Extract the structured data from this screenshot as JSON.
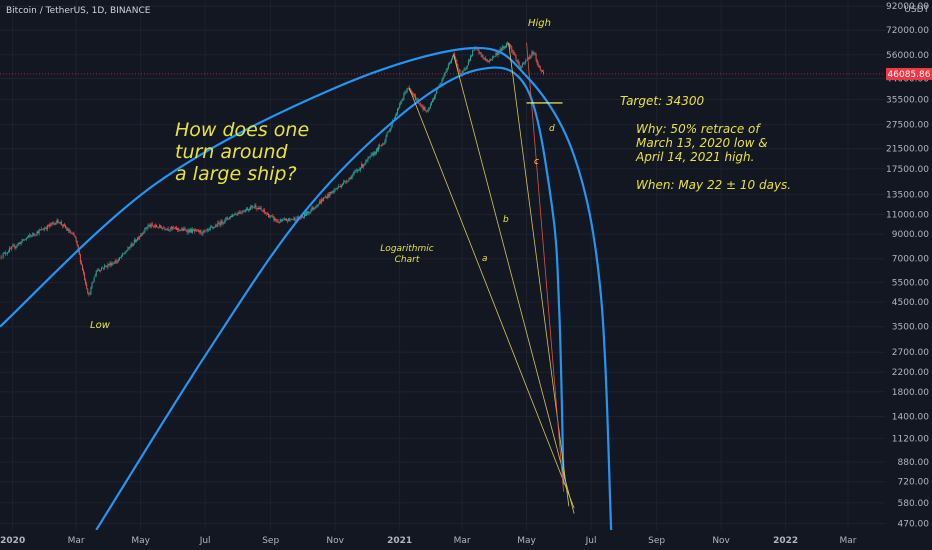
{
  "header": {
    "symbol": "Bitcoin / TetherUS, 1D, BINANCE",
    "currency": "USDT"
  },
  "price_badge": {
    "text": "46085.86",
    "value": 46085.86,
    "color": "#f23645"
  },
  "colors": {
    "background": "#131722",
    "up": "#26a69a",
    "down": "#ef5350",
    "curve": "#2196f3",
    "annotation": "#e8e23a",
    "fan_yellow": "#d6c55a",
    "fan_red": "#e0553a",
    "grid": "#1e2230",
    "axis_text": "#b2b5be"
  },
  "chart_data": {
    "type": "candlestick",
    "yscale": "log",
    "ylim": [
      440,
      98000
    ],
    "xlim": [
      "2019-12-20",
      "2022-04-05"
    ],
    "y_ticks": [
      "92000.00",
      "72000.00",
      "56000.00",
      "44000.00",
      "35500.00",
      "27500.00",
      "21500.00",
      "17500.00",
      "13500.00",
      "11000.00",
      "9000.00",
      "7000.00",
      "5500.00",
      "4500.00",
      "3500.00",
      "2700.00",
      "2200.00",
      "1800.00",
      "1400.00",
      "1120.00",
      "880.00",
      "720.00",
      "580.00",
      "470.00"
    ],
    "x_ticks": [
      {
        "date": "2020-01-01",
        "label": "2020",
        "bold": true
      },
      {
        "date": "2020-03-01",
        "label": "Mar",
        "bold": false
      },
      {
        "date": "2020-05-01",
        "label": "May",
        "bold": false
      },
      {
        "date": "2020-07-01",
        "label": "Jul",
        "bold": false
      },
      {
        "date": "2020-09-01",
        "label": "Sep",
        "bold": false
      },
      {
        "date": "2020-11-01",
        "label": "Nov",
        "bold": false
      },
      {
        "date": "2021-01-01",
        "label": "2021",
        "bold": true
      },
      {
        "date": "2021-03-01",
        "label": "Mar",
        "bold": false
      },
      {
        "date": "2021-05-01",
        "label": "May",
        "bold": false
      },
      {
        "date": "2021-07-01",
        "label": "Jul",
        "bold": false
      },
      {
        "date": "2021-09-01",
        "label": "Sep",
        "bold": false
      },
      {
        "date": "2021-11-01",
        "label": "Nov",
        "bold": false
      },
      {
        "date": "2022-01-01",
        "label": "2022",
        "bold": true
      },
      {
        "date": "2022-03-01",
        "label": "Mar",
        "bold": false
      }
    ],
    "price_path": [
      [
        "2019-12-20",
        7150
      ],
      [
        "2020-01-15",
        8700
      ],
      [
        "2020-02-13",
        10300
      ],
      [
        "2020-02-29",
        8700
      ],
      [
        "2020-03-12",
        5000
      ],
      [
        "2020-03-13",
        4800
      ],
      [
        "2020-03-20",
        6200
      ],
      [
        "2020-04-10",
        6900
      ],
      [
        "2020-05-08",
        9800
      ],
      [
        "2020-06-01",
        9500
      ],
      [
        "2020-07-01",
        9150
      ],
      [
        "2020-07-28",
        11000
      ],
      [
        "2020-08-17",
        12000
      ],
      [
        "2020-09-08",
        10200
      ],
      [
        "2020-10-01",
        10700
      ],
      [
        "2020-10-21",
        12900
      ],
      [
        "2020-11-15",
        16000
      ],
      [
        "2020-12-01",
        19000
      ],
      [
        "2020-12-17",
        23000
      ],
      [
        "2021-01-08",
        40000
      ],
      [
        "2021-01-27",
        31000
      ],
      [
        "2021-02-10",
        44000
      ],
      [
        "2021-02-21",
        56000
      ],
      [
        "2021-02-28",
        45000
      ],
      [
        "2021-03-13",
        60000
      ],
      [
        "2021-03-25",
        52000
      ],
      [
        "2021-04-14",
        63500
      ],
      [
        "2021-04-25",
        49000
      ],
      [
        "2021-05-08",
        58000
      ],
      [
        "2021-05-12",
        50000
      ],
      [
        "2021-05-17",
        46086
      ]
    ],
    "series": [
      {
        "name": "",
        "points": [
          [
            "2019-12-20",
            3500
          ],
          [
            "2020-05-15",
            15000
          ],
          [
            "2020-11-01",
            40000
          ],
          [
            "2021-03-10",
            60000
          ],
          [
            "2021-05-01",
            45000
          ],
          [
            "2021-06-15",
            20000
          ],
          [
            "2021-07-10",
            5000
          ],
          [
            "2021-07-20",
            440
          ]
        ]
      },
      {
        "name": "",
        "points": [
          [
            "2020-03-20",
            440
          ],
          [
            "2020-07-01",
            2600
          ],
          [
            "2020-10-01",
            11000
          ],
          [
            "2021-01-01",
            30000
          ],
          [
            "2021-03-15",
            48000
          ],
          [
            "2021-05-01",
            40000
          ],
          [
            "2021-05-25",
            12000
          ],
          [
            "2021-06-01",
            4000
          ],
          [
            "2021-06-05",
            700
          ]
        ]
      }
    ],
    "fan_lines": [
      {
        "label": "a",
        "from": [
          "2021-01-10",
          40000
        ],
        "to": [
          "2021-06-15",
          550
        ]
      },
      {
        "label": "b",
        "from": [
          "2021-02-21",
          56000
        ],
        "to": [
          "2021-06-15",
          520
        ]
      },
      {
        "label": "c",
        "from": [
          "2021-04-14",
          63500
        ],
        "to": [
          "2021-06-10",
          560
        ]
      },
      {
        "label": "d",
        "from": [
          "2021-05-01",
          63500
        ],
        "to": [
          "2021-06-05",
          650
        ]
      }
    ],
    "target_line": {
      "value": 34300,
      "from": "2021-05-01",
      "to": "2021-06-04"
    },
    "current_price": 46085.86
  },
  "annotations": {
    "high": "High",
    "low": "Low",
    "target": "Target: 34300",
    "question": [
      "How does one",
      "turn around",
      "a large ship?"
    ],
    "log_chart": [
      "Logarithmic",
      "Chart"
    ],
    "why": [
      "Why: 50% retrace of",
      "March 13, 2020  low &",
      "April 14, 2021 high."
    ],
    "when": "When: May 22 ± 10 days.",
    "fan_labels": {
      "a": "a",
      "b": "b",
      "c": "c",
      "d": "d"
    }
  }
}
